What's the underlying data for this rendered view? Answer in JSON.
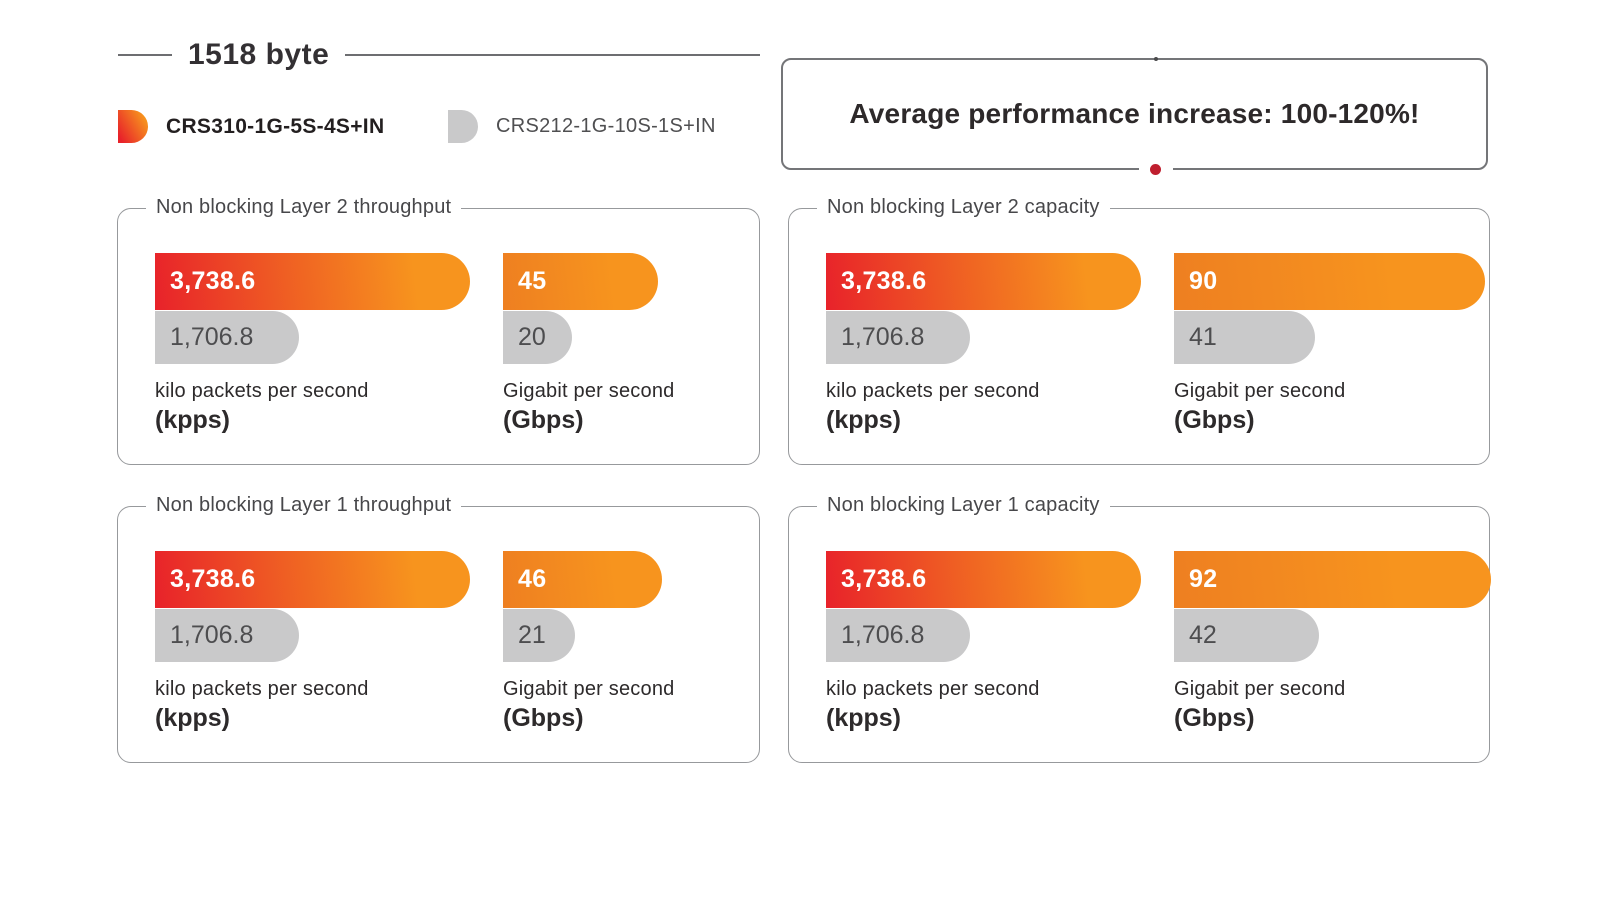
{
  "title": "1518 byte",
  "legend": [
    {
      "label": "CRS310-1G-5S-4S+IN"
    },
    {
      "label": "CRS212-1G-10S-1S+IN"
    }
  ],
  "banner": {
    "text": "Average performance increase: 100-120%!"
  },
  "colors": {
    "series1_red": "#e8222a",
    "series1_orange": "#f7941e",
    "series2_gray": "#c9c9ca",
    "dot_red": "#bf1e2e"
  },
  "chart_data": {
    "type": "bar",
    "series": [
      "CRS310-1G-5S-4S+IN",
      "CRS212-1G-10S-1S+IN"
    ],
    "panels": [
      {
        "title": "Non blocking Layer 2 throughput",
        "groups": [
          {
            "unit_label": "kilo packets per second",
            "unit_abbr": "(kpps)",
            "labels": [
              "3,738.6",
              "1,706.8"
            ],
            "values": [
              3738.6,
              1706.8
            ]
          },
          {
            "unit_label": "Gigabit per second",
            "unit_abbr": "(Gbps)",
            "labels": [
              "45",
              "20"
            ],
            "values": [
              45,
              20
            ]
          }
        ]
      },
      {
        "title": "Non blocking Layer 2 capacity",
        "groups": [
          {
            "unit_label": "kilo packets per second",
            "unit_abbr": "(kpps)",
            "labels": [
              "3,738.6",
              "1,706.8"
            ],
            "values": [
              3738.6,
              1706.8
            ]
          },
          {
            "unit_label": "Gigabit per second",
            "unit_abbr": "(Gbps)",
            "labels": [
              "90",
              "41"
            ],
            "values": [
              90,
              41
            ]
          }
        ]
      },
      {
        "title": "Non blocking Layer 1 throughput",
        "groups": [
          {
            "unit_label": "kilo packets per second",
            "unit_abbr": "(kpps)",
            "labels": [
              "3,738.6",
              "1,706.8"
            ],
            "values": [
              3738.6,
              1706.8
            ]
          },
          {
            "unit_label": "Gigabit per second",
            "unit_abbr": "(Gbps)",
            "labels": [
              "46",
              "21"
            ],
            "values": [
              46,
              21
            ]
          }
        ]
      },
      {
        "title": "Non blocking Layer 1 capacity",
        "groups": [
          {
            "unit_label": "kilo packets per second",
            "unit_abbr": "(kpps)",
            "labels": [
              "3,738.6",
              "1,706.8"
            ],
            "values": [
              3738.6,
              1706.8
            ]
          },
          {
            "unit_label": "Gigabit per second",
            "unit_abbr": "(Gbps)",
            "labels": [
              "92",
              "42"
            ],
            "values": [
              92,
              42
            ]
          }
        ]
      }
    ]
  }
}
